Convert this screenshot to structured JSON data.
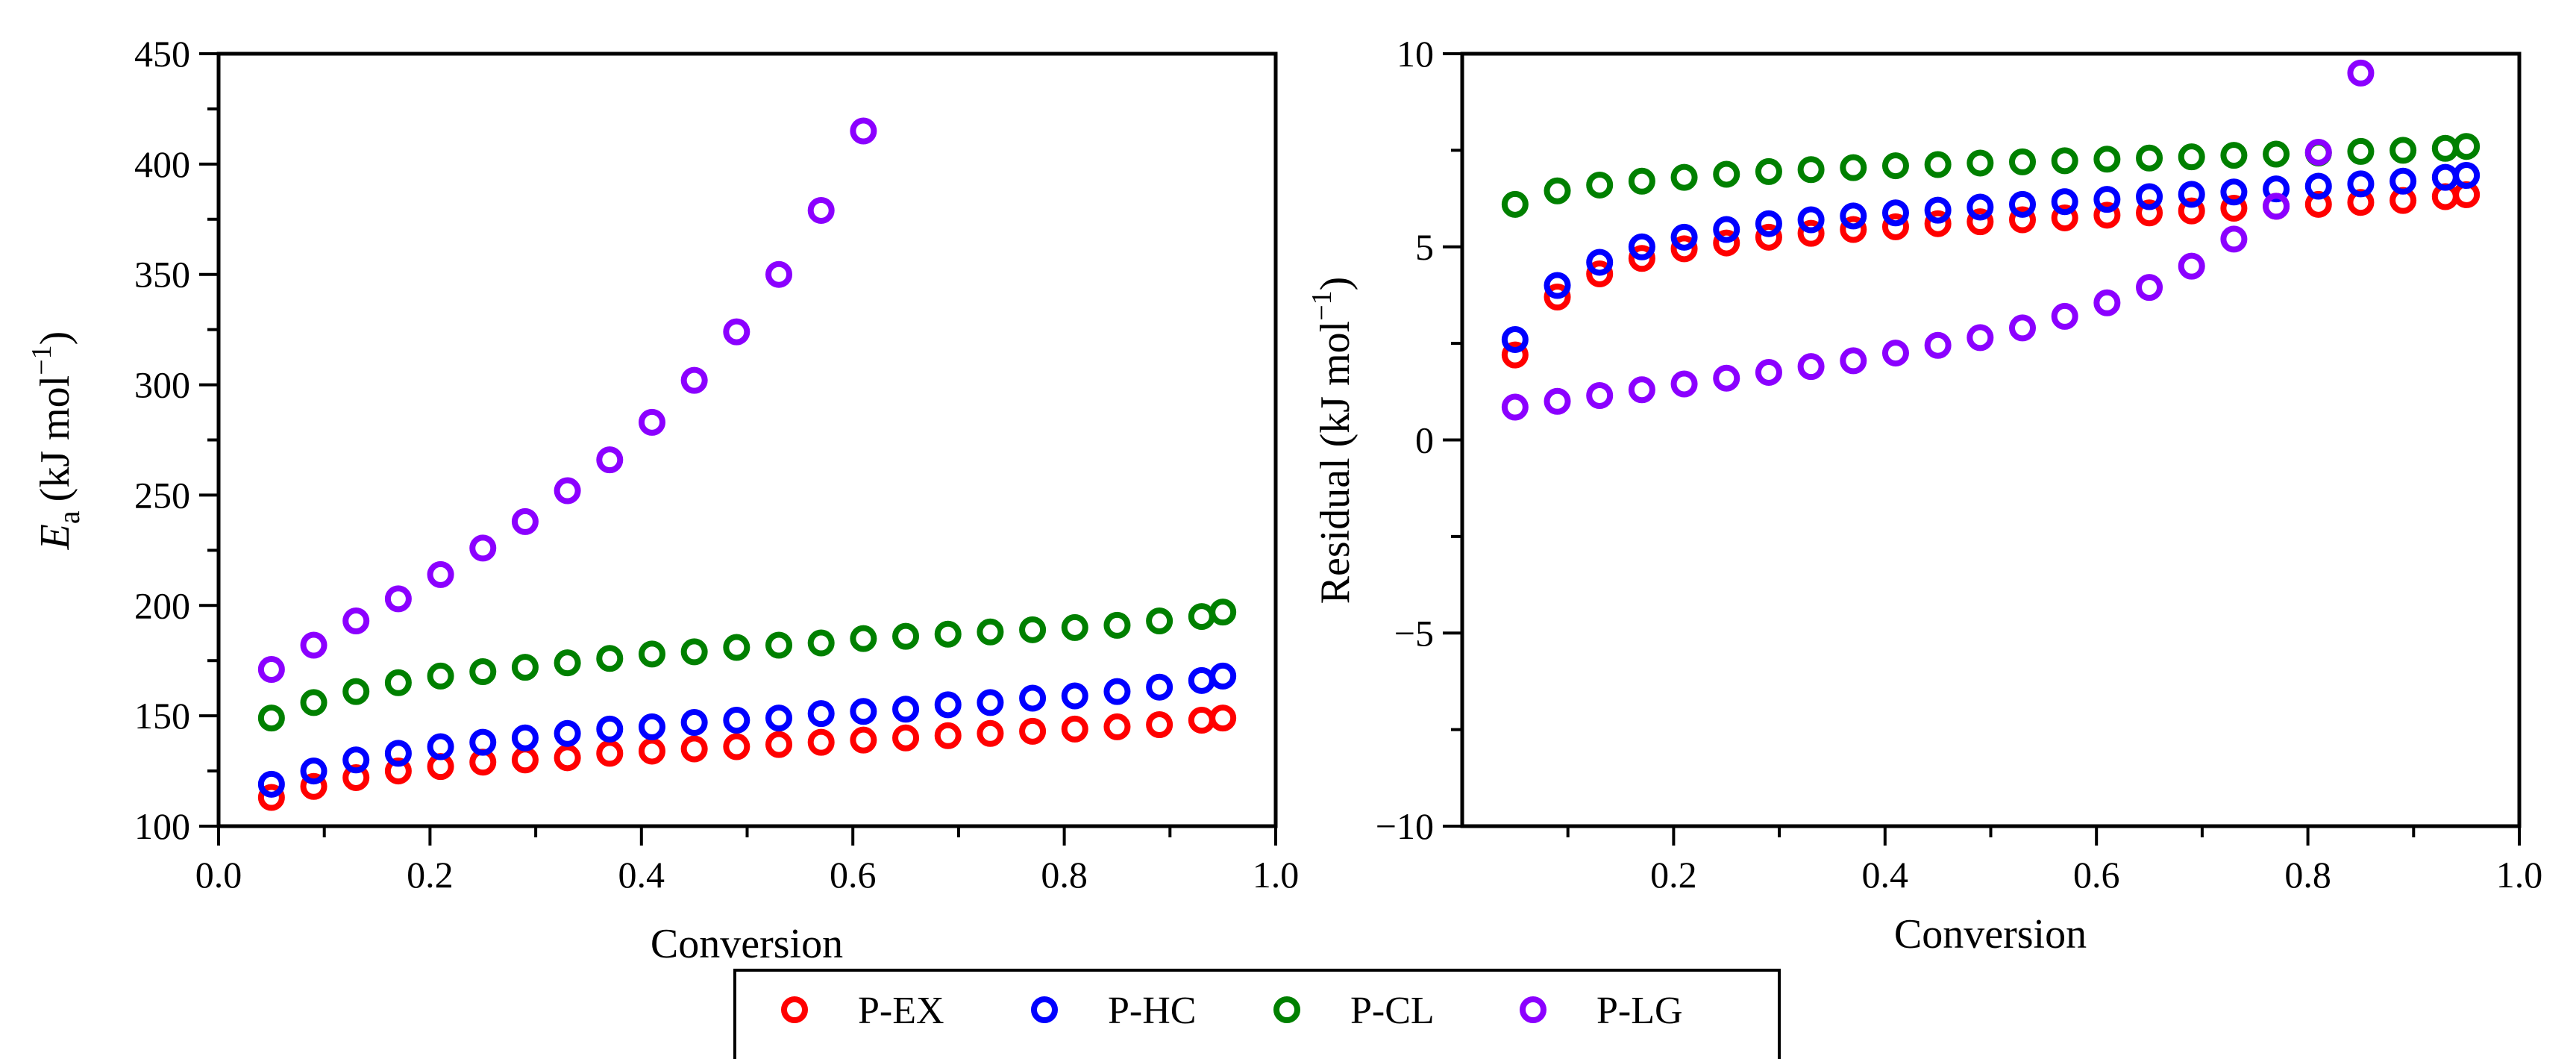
{
  "colors": {
    "P-EX": "#ff0000",
    "P-HC": "#0000ff",
    "P-CL": "#008000",
    "P-LG": "#8b00ff",
    "axis": "#000000"
  },
  "legend": [
    "P-EX",
    "P-HC",
    "P-CL",
    "P-LG"
  ],
  "chart_data": [
    {
      "type": "scatter",
      "title": "",
      "xlabel": "Conversion",
      "ylabel_main": "E",
      "ylabel_sub": "a",
      "ylabel_unit": "(kJ mol",
      "ylabel_sup": "−1",
      "ylabel_close": ")",
      "xlim": [
        0.0,
        1.0
      ],
      "ylim": [
        100,
        450
      ],
      "xticks": [
        0.0,
        0.2,
        0.4,
        0.6,
        0.8,
        1.0
      ],
      "xtick_labels": [
        "0.0",
        "0.2",
        "0.4",
        "0.6",
        "0.8",
        "1.0"
      ],
      "yticks": [
        100,
        150,
        200,
        250,
        300,
        350,
        400,
        450
      ],
      "ytick_labels": [
        "100",
        "150",
        "200",
        "250",
        "300",
        "350",
        "400",
        "450"
      ],
      "series": [
        {
          "name": "P-EX",
          "x": [
            0.05,
            0.09,
            0.13,
            0.17,
            0.21,
            0.25,
            0.29,
            0.33,
            0.37,
            0.41,
            0.45,
            0.49,
            0.53,
            0.57,
            0.61,
            0.65,
            0.69,
            0.73,
            0.77,
            0.81,
            0.85,
            0.89,
            0.93,
            0.95
          ],
          "y": [
            113,
            118,
            122,
            125,
            127,
            129,
            130,
            131,
            133,
            134,
            135,
            136,
            137,
            138,
            139,
            140,
            141,
            142,
            143,
            144,
            145,
            146,
            148,
            149
          ]
        },
        {
          "name": "P-HC",
          "x": [
            0.05,
            0.09,
            0.13,
            0.17,
            0.21,
            0.25,
            0.29,
            0.33,
            0.37,
            0.41,
            0.45,
            0.49,
            0.53,
            0.57,
            0.61,
            0.65,
            0.69,
            0.73,
            0.77,
            0.81,
            0.85,
            0.89,
            0.93,
            0.95
          ],
          "y": [
            119,
            125,
            130,
            133,
            136,
            138,
            140,
            142,
            144,
            145,
            147,
            148,
            149,
            151,
            152,
            153,
            155,
            156,
            158,
            159,
            161,
            163,
            166,
            168
          ]
        },
        {
          "name": "P-CL",
          "x": [
            0.05,
            0.09,
            0.13,
            0.17,
            0.21,
            0.25,
            0.29,
            0.33,
            0.37,
            0.41,
            0.45,
            0.49,
            0.53,
            0.57,
            0.61,
            0.65,
            0.69,
            0.73,
            0.77,
            0.81,
            0.85,
            0.89,
            0.93,
            0.95
          ],
          "y": [
            149,
            156,
            161,
            165,
            168,
            170,
            172,
            174,
            176,
            178,
            179,
            181,
            182,
            183,
            185,
            186,
            187,
            188,
            189,
            190,
            191,
            193,
            195,
            197
          ]
        },
        {
          "name": "P-LG",
          "x": [
            0.05,
            0.09,
            0.13,
            0.17,
            0.21,
            0.25,
            0.29,
            0.33,
            0.37,
            0.41,
            0.45,
            0.49,
            0.53,
            0.57,
            0.61
          ],
          "y": [
            171,
            182,
            193,
            203,
            214,
            226,
            238,
            252,
            266,
            283,
            302,
            324,
            350,
            379,
            415
          ]
        }
      ]
    },
    {
      "type": "scatter",
      "title": "",
      "xlabel": "Conversion",
      "ylabel_main": "Residual (kJ mol",
      "ylabel_sup": "−1",
      "ylabel_close": ")",
      "xlim": [
        0.0,
        1.0
      ],
      "ylim": [
        -10,
        10
      ],
      "xticks": [
        0.2,
        0.4,
        0.6,
        0.8,
        1.0
      ],
      "xtick_labels": [
        "0.2",
        "0.4",
        "0.6",
        "0.8",
        "1.0"
      ],
      "yticks": [
        -10,
        -5,
        0,
        5,
        10
      ],
      "ytick_labels": [
        "−10",
        "−5",
        "0",
        "5",
        "10"
      ],
      "series": [
        {
          "name": "P-EX",
          "x": [
            0.05,
            0.09,
            0.13,
            0.17,
            0.21,
            0.25,
            0.29,
            0.33,
            0.37,
            0.41,
            0.45,
            0.49,
            0.53,
            0.57,
            0.61,
            0.65,
            0.69,
            0.73,
            0.77,
            0.81,
            0.85,
            0.89,
            0.93,
            0.95
          ],
          "y": [
            2.2,
            3.7,
            4.3,
            4.7,
            4.95,
            5.1,
            5.25,
            5.35,
            5.45,
            5.52,
            5.6,
            5.65,
            5.7,
            5.75,
            5.82,
            5.88,
            5.93,
            6.0,
            6.05,
            6.1,
            6.15,
            6.2,
            6.3,
            6.35
          ]
        },
        {
          "name": "P-HC",
          "x": [
            0.05,
            0.09,
            0.13,
            0.17,
            0.21,
            0.25,
            0.29,
            0.33,
            0.37,
            0.41,
            0.45,
            0.49,
            0.53,
            0.57,
            0.61,
            0.65,
            0.69,
            0.73,
            0.77,
            0.81,
            0.85,
            0.89,
            0.93,
            0.95
          ],
          "y": [
            2.6,
            4.0,
            4.6,
            5.0,
            5.25,
            5.45,
            5.6,
            5.7,
            5.8,
            5.88,
            5.95,
            6.03,
            6.1,
            6.17,
            6.23,
            6.3,
            6.36,
            6.42,
            6.5,
            6.57,
            6.63,
            6.7,
            6.8,
            6.85
          ]
        },
        {
          "name": "P-CL",
          "x": [
            0.05,
            0.09,
            0.13,
            0.17,
            0.21,
            0.25,
            0.29,
            0.33,
            0.37,
            0.41,
            0.45,
            0.49,
            0.53,
            0.57,
            0.61,
            0.65,
            0.69,
            0.73,
            0.77,
            0.81,
            0.85,
            0.89,
            0.93,
            0.95
          ],
          "y": [
            6.1,
            6.45,
            6.6,
            6.7,
            6.8,
            6.88,
            6.95,
            7.0,
            7.05,
            7.1,
            7.13,
            7.17,
            7.2,
            7.23,
            7.27,
            7.3,
            7.33,
            7.37,
            7.4,
            7.43,
            7.47,
            7.5,
            7.55,
            7.6
          ]
        },
        {
          "name": "P-LG",
          "x": [
            0.05,
            0.09,
            0.13,
            0.17,
            0.21,
            0.25,
            0.29,
            0.33,
            0.37,
            0.41,
            0.45,
            0.49,
            0.53,
            0.57,
            0.61,
            0.65,
            0.69,
            0.73,
            0.77,
            0.81,
            0.85
          ],
          "y": [
            0.85,
            1.0,
            1.15,
            1.3,
            1.45,
            1.6,
            1.75,
            1.9,
            2.05,
            2.25,
            2.45,
            2.65,
            2.9,
            3.2,
            3.55,
            3.95,
            4.5,
            5.2,
            6.05,
            7.45,
            9.5
          ]
        }
      ]
    }
  ]
}
